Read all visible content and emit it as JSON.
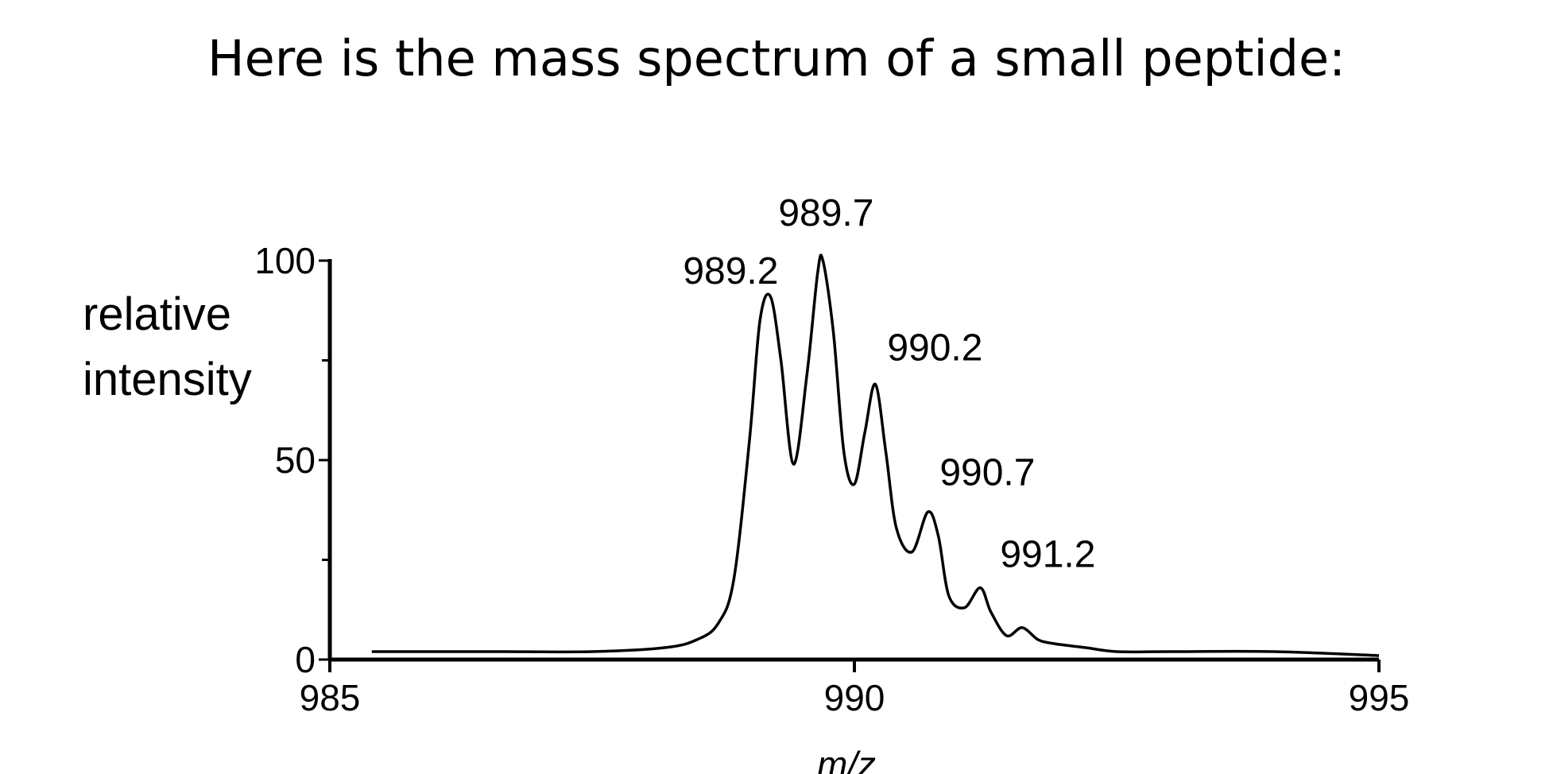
{
  "slide": {
    "title": "Here is the mass spectrum of a small peptide:"
  },
  "chart_data": {
    "type": "line",
    "title": "",
    "xlabel": "m/z",
    "ylabel_lines": [
      "relative",
      "intensity"
    ],
    "xlim": [
      985,
      995
    ],
    "ylim": [
      0,
      100
    ],
    "x_ticks": [
      {
        "value": 985,
        "label": "985"
      },
      {
        "value": 990,
        "label": "990"
      },
      {
        "value": 995,
        "label": "995"
      }
    ],
    "y_ticks": [
      {
        "value": 0,
        "label": "0"
      },
      {
        "value": 50,
        "label": "50"
      },
      {
        "value": 100,
        "label": "100"
      }
    ],
    "y_minor_ticks": [
      25,
      75
    ],
    "grid": false,
    "series": [
      {
        "x": [
          985.4,
          986.5,
          987.5,
          988.2,
          988.5,
          988.7,
          988.85,
          989.0,
          989.1,
          989.2,
          989.3,
          989.42,
          989.55,
          989.65,
          989.7,
          989.8,
          989.9,
          990.0,
          990.1,
          990.2,
          990.3,
          990.4,
          990.55,
          990.7,
          990.8,
          990.9,
          991.05,
          991.2,
          991.3,
          991.45,
          991.6,
          991.75,
          991.9,
          992.2,
          992.5,
          993.0,
          994.0,
          995.0
        ],
        "y": [
          2,
          2,
          2,
          3,
          5,
          9,
          20,
          55,
          85,
          91,
          75,
          49,
          72,
          97,
          100,
          82,
          52,
          44,
          57,
          69,
          52,
          33,
          27,
          37,
          31,
          16,
          13,
          18,
          12,
          6,
          8,
          5,
          4,
          3,
          2,
          2,
          2,
          1
        ]
      }
    ],
    "peak_labels": [
      {
        "x": 989.2,
        "y": 91,
        "label": "989.2"
      },
      {
        "x": 989.7,
        "y": 100,
        "label": "989.7"
      },
      {
        "x": 990.2,
        "y": 69,
        "label": "990.2"
      },
      {
        "x": 990.7,
        "y": 37,
        "label": "990.7"
      },
      {
        "x": 991.2,
        "y": 18,
        "label": "991.2"
      }
    ]
  }
}
